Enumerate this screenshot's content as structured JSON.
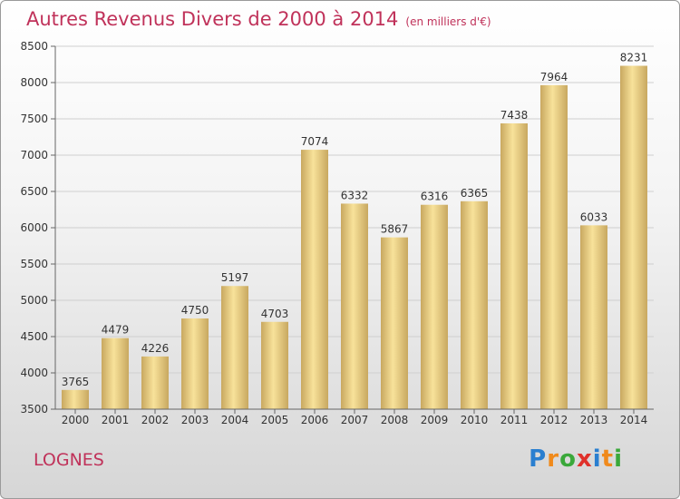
{
  "title": "Autres Revenus Divers de 2000 à 2014",
  "unit_note": "(en milliers d'€)",
  "commune": "LOGNES",
  "brand": {
    "letters": [
      "P",
      "r",
      "o",
      "x",
      "i",
      "t",
      "i"
    ],
    "colors": [
      "#2a7fd0",
      "#f08a1c",
      "#3aa83a",
      "#e0312b",
      "#2a7fd0",
      "#f08a1c",
      "#3aa83a"
    ]
  },
  "colors": {
    "bar_light": "#f8e29a",
    "bar_dark": "#c8a860",
    "title": "#c0325a"
  },
  "chart_data": {
    "type": "bar",
    "title": "Autres Revenus Divers de 2000 à 2014",
    "subtitle": "(en milliers d'€)",
    "xlabel": "",
    "ylabel": "",
    "categories": [
      "2000",
      "2001",
      "2002",
      "2003",
      "2004",
      "2005",
      "2006",
      "2007",
      "2008",
      "2009",
      "2010",
      "2011",
      "2012",
      "2013",
      "2014"
    ],
    "values": [
      3765,
      4479,
      4226,
      4750,
      5197,
      4703,
      7074,
      6332,
      5867,
      6316,
      6365,
      7438,
      7964,
      6033,
      8231
    ],
    "ylim": [
      3500,
      8500
    ],
    "yticks": [
      3500,
      4000,
      4500,
      5000,
      5500,
      6000,
      6500,
      7000,
      7500,
      8000,
      8500
    ],
    "grid": true,
    "data_labels": true
  }
}
